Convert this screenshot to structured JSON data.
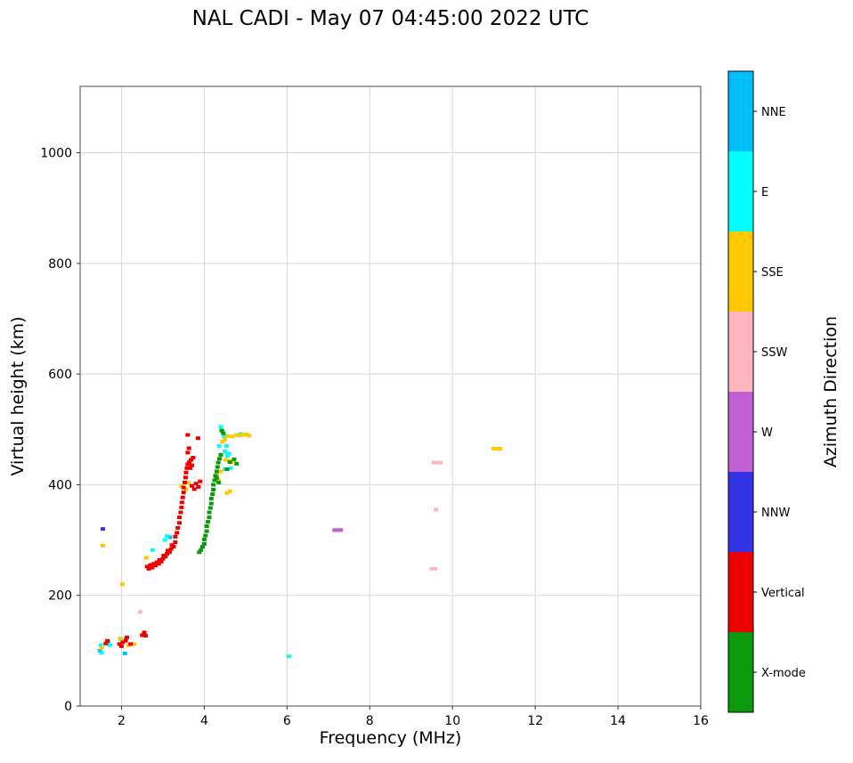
{
  "chart_data": {
    "type": "scatter",
    "title": "NAL CADI - May 07 04:45:00 2022 UTC",
    "xlabel": "Frequency (MHz)",
    "ylabel": "Virtual height (km)",
    "legend_title": "Azimuth Direction",
    "legend_position": "right-colorbar",
    "grid": true,
    "xlim": [
      1,
      16
    ],
    "ylim": [
      0,
      1120
    ],
    "x_ticks": [
      2,
      4,
      6,
      8,
      10,
      12,
      14,
      16
    ],
    "y_ticks": [
      0,
      200,
      400,
      600,
      800,
      1000
    ],
    "marker": "square",
    "series": [
      {
        "name": "NNE",
        "color": "#00BFFF",
        "points": [
          [
            1.48,
            100
          ],
          [
            2.08,
            95
          ],
          [
            3.17,
            305
          ]
        ]
      },
      {
        "name": "E",
        "color": "#00FFFF",
        "points": [
          [
            1.5,
            110
          ],
          [
            1.52,
            96
          ],
          [
            1.68,
            116
          ],
          [
            1.72,
            110
          ],
          [
            1.98,
            121
          ],
          [
            2.1,
            122
          ],
          [
            2.75,
            282
          ],
          [
            3.05,
            300
          ],
          [
            3.1,
            307
          ],
          [
            4.36,
            470
          ],
          [
            4.4,
            505
          ],
          [
            4.44,
            497
          ],
          [
            4.48,
            488
          ],
          [
            4.5,
            460
          ],
          [
            4.54,
            470
          ],
          [
            4.56,
            452
          ],
          [
            4.6,
            456
          ],
          [
            4.64,
            430
          ],
          [
            4.5,
            428
          ],
          [
            4.88,
            492
          ],
          [
            6.05,
            90
          ]
        ]
      },
      {
        "name": "SSE",
        "color": "#FFC800",
        "points": [
          [
            1.52,
            105
          ],
          [
            1.55,
            290
          ],
          [
            2.02,
            220
          ],
          [
            1.97,
            122
          ],
          [
            2.17,
            110
          ],
          [
            2.3,
            112
          ],
          [
            2.6,
            268
          ],
          [
            3.45,
            398
          ],
          [
            3.56,
            392
          ],
          [
            3.62,
            403
          ],
          [
            4.3,
            418
          ],
          [
            4.34,
            408
          ],
          [
            4.4,
            424
          ],
          [
            4.44,
            478
          ],
          [
            4.5,
            482
          ],
          [
            4.52,
            445
          ],
          [
            4.57,
            488
          ],
          [
            4.6,
            443
          ],
          [
            4.65,
            440
          ],
          [
            4.68,
            487
          ],
          [
            4.72,
            444
          ],
          [
            4.78,
            490
          ],
          [
            4.85,
            489
          ],
          [
            4.95,
            490
          ],
          [
            5.02,
            491
          ],
          [
            5.08,
            489
          ],
          [
            4.55,
            385
          ],
          [
            4.62,
            388
          ],
          [
            11.0,
            465
          ],
          [
            11.08,
            465
          ],
          [
            11.15,
            465
          ]
        ]
      },
      {
        "name": "SSW",
        "color": "#FFB6C1",
        "points": [
          [
            2.45,
            170
          ],
          [
            9.55,
            440
          ],
          [
            9.63,
            440
          ],
          [
            9.71,
            440
          ],
          [
            9.6,
            355
          ],
          [
            9.5,
            248
          ],
          [
            9.58,
            248
          ]
        ]
      },
      {
        "name": "W",
        "color": "#BF5FD3",
        "points": [
          [
            7.15,
            318
          ],
          [
            7.22,
            318
          ],
          [
            7.3,
            318
          ]
        ]
      },
      {
        "name": "NNW",
        "color": "#3333E6",
        "points": [
          [
            1.55,
            320
          ]
        ]
      },
      {
        "name": "Vertical",
        "color": "#EE0000",
        "points": [
          [
            1.62,
            113
          ],
          [
            1.66,
            118
          ],
          [
            1.95,
            112
          ],
          [
            2.0,
            108
          ],
          [
            2.03,
            115
          ],
          [
            2.1,
            118
          ],
          [
            2.13,
            124
          ],
          [
            2.22,
            112
          ],
          [
            2.5,
            128
          ],
          [
            2.55,
            133
          ],
          [
            2.58,
            127
          ],
          [
            2.62,
            252
          ],
          [
            2.66,
            248
          ],
          [
            2.7,
            255
          ],
          [
            2.74,
            250
          ],
          [
            2.78,
            257
          ],
          [
            2.82,
            254
          ],
          [
            2.86,
            260
          ],
          [
            2.9,
            257
          ],
          [
            2.92,
            264
          ],
          [
            2.96,
            261
          ],
          [
            3.0,
            266
          ],
          [
            3.02,
            272
          ],
          [
            3.06,
            270
          ],
          [
            3.1,
            275
          ],
          [
            3.12,
            281
          ],
          [
            3.16,
            278
          ],
          [
            3.2,
            284
          ],
          [
            3.22,
            291
          ],
          [
            3.26,
            288
          ],
          [
            3.3,
            296
          ],
          [
            3.3,
            306
          ],
          [
            3.34,
            313
          ],
          [
            3.36,
            322
          ],
          [
            3.4,
            331
          ],
          [
            3.4,
            341
          ],
          [
            3.43,
            350
          ],
          [
            3.45,
            359
          ],
          [
            3.46,
            368
          ],
          [
            3.48,
            377
          ],
          [
            3.5,
            386
          ],
          [
            3.5,
            395
          ],
          [
            3.53,
            404
          ],
          [
            3.55,
            413
          ],
          [
            3.56,
            422
          ],
          [
            3.58,
            430
          ],
          [
            3.6,
            437
          ],
          [
            3.64,
            441
          ],
          [
            3.68,
            445
          ],
          [
            3.73,
            449
          ],
          [
            3.6,
            458
          ],
          [
            3.63,
            466
          ],
          [
            3.6,
            490
          ],
          [
            3.85,
            484
          ],
          [
            3.7,
            398
          ],
          [
            3.76,
            392
          ],
          [
            3.8,
            402
          ],
          [
            3.86,
            396
          ],
          [
            3.9,
            406
          ],
          [
            3.66,
            430
          ],
          [
            3.7,
            435
          ]
        ]
      },
      {
        "name": "X-mode",
        "color": "#0B9A0B",
        "points": [
          [
            3.88,
            278
          ],
          [
            3.92,
            282
          ],
          [
            3.96,
            288
          ],
          [
            4.0,
            293
          ],
          [
            4.0,
            301
          ],
          [
            4.03,
            308
          ],
          [
            4.06,
            316
          ],
          [
            4.06,
            325
          ],
          [
            4.09,
            333
          ],
          [
            4.12,
            341
          ],
          [
            4.12,
            350
          ],
          [
            4.15,
            358
          ],
          [
            4.17,
            366
          ],
          [
            4.17,
            375
          ],
          [
            4.2,
            383
          ],
          [
            4.22,
            391
          ],
          [
            4.22,
            400
          ],
          [
            4.25,
            408
          ],
          [
            4.27,
            416
          ],
          [
            4.3,
            424
          ],
          [
            4.32,
            432
          ],
          [
            4.34,
            440
          ],
          [
            4.37,
            447
          ],
          [
            4.4,
            454
          ],
          [
            4.42,
            498
          ],
          [
            4.46,
            493
          ],
          [
            4.55,
            428
          ],
          [
            4.62,
            441
          ],
          [
            4.72,
            446
          ],
          [
            4.78,
            438
          ],
          [
            4.3,
            412
          ],
          [
            4.35,
            404
          ]
        ]
      }
    ]
  }
}
